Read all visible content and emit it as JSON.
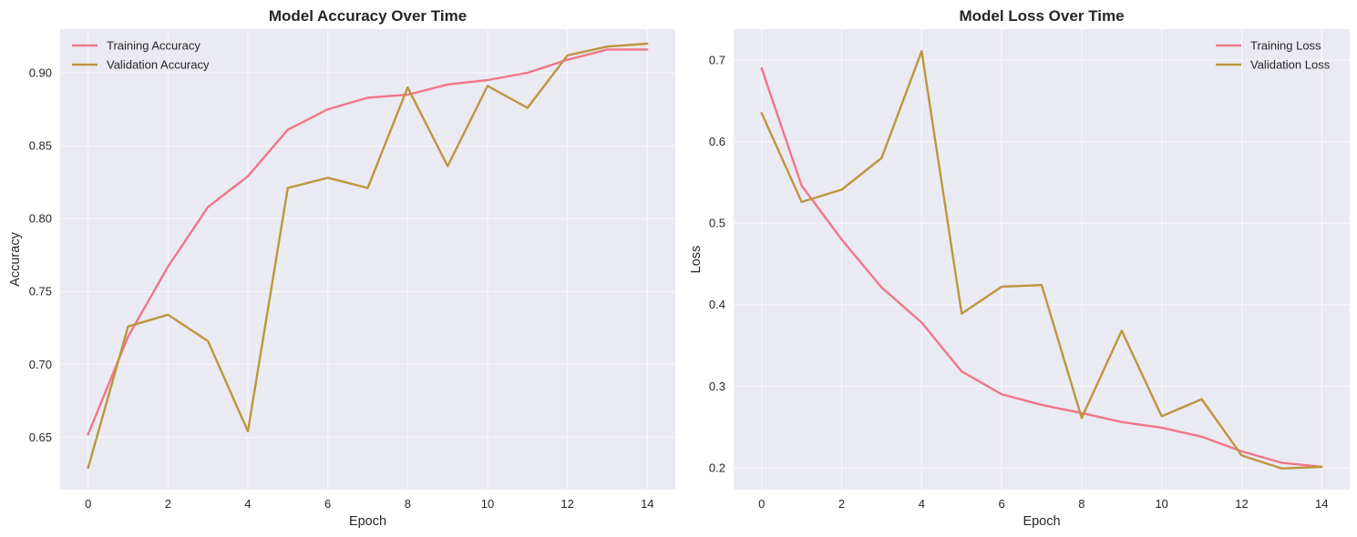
{
  "chart_data": [
    {
      "type": "line",
      "title": "Model Accuracy Over Time",
      "xlabel": "Epoch",
      "ylabel": "Accuracy",
      "x": [
        0,
        1,
        2,
        3,
        4,
        5,
        6,
        7,
        8,
        9,
        10,
        11,
        12,
        13,
        14
      ],
      "xlim": [
        -0.7,
        14.7
      ],
      "ylim": [
        0.614,
        0.93
      ],
      "xticks": [
        0,
        2,
        4,
        6,
        8,
        10,
        12,
        14
      ],
      "yticks": [
        0.65,
        0.7,
        0.75,
        0.8,
        0.85,
        0.9
      ],
      "ytick_labels": [
        "0.65",
        "0.70",
        "0.75",
        "0.80",
        "0.85",
        "0.90"
      ],
      "grid": true,
      "legend": "upper-left",
      "series": [
        {
          "name": "Training Accuracy",
          "color": "#f0768a",
          "values": [
            0.652,
            0.719,
            0.767,
            0.808,
            0.829,
            0.861,
            0.875,
            0.883,
            0.885,
            0.892,
            0.895,
            0.9,
            0.909,
            0.916,
            0.916
          ]
        },
        {
          "name": "Validation Accuracy",
          "color": "#bc963f",
          "values": [
            0.629,
            0.726,
            0.734,
            0.716,
            0.654,
            0.821,
            0.828,
            0.821,
            0.89,
            0.836,
            0.891,
            0.876,
            0.912,
            0.918,
            0.92
          ]
        }
      ]
    },
    {
      "type": "line",
      "title": "Model Loss Over Time",
      "xlabel": "Epoch",
      "ylabel": "Loss",
      "x": [
        0,
        1,
        2,
        3,
        4,
        5,
        6,
        7,
        8,
        9,
        10,
        11,
        12,
        13,
        14
      ],
      "xlim": [
        -0.7,
        14.7
      ],
      "ylim": [
        0.173,
        0.738
      ],
      "xticks": [
        0,
        2,
        4,
        6,
        8,
        10,
        12,
        14
      ],
      "yticks": [
        0.2,
        0.3,
        0.4,
        0.5,
        0.6,
        0.7
      ],
      "ytick_labels": [
        "0.2",
        "0.3",
        "0.4",
        "0.5",
        "0.6",
        "0.7"
      ],
      "grid": true,
      "legend": "upper-right",
      "series": [
        {
          "name": "Training Loss",
          "color": "#f0768a",
          "values": [
            0.69,
            0.546,
            0.48,
            0.421,
            0.378,
            0.318,
            0.29,
            0.277,
            0.267,
            0.256,
            0.249,
            0.238,
            0.22,
            0.206,
            0.201
          ]
        },
        {
          "name": "Validation Loss",
          "color": "#bc963f",
          "values": [
            0.635,
            0.526,
            0.541,
            0.58,
            0.711,
            0.389,
            0.422,
            0.424,
            0.261,
            0.368,
            0.263,
            0.284,
            0.215,
            0.199,
            0.201
          ]
        }
      ]
    }
  ]
}
